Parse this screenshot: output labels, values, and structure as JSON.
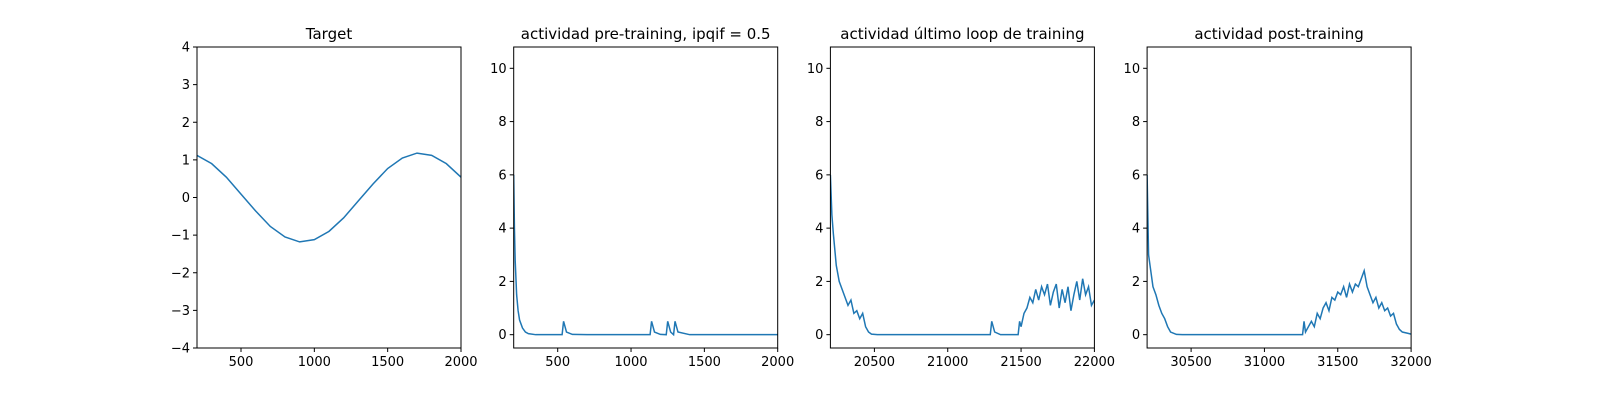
{
  "chart_data": [
    {
      "type": "line",
      "title": "Target",
      "color": "#1f77b4",
      "x": [
        200,
        300,
        400,
        500,
        600,
        700,
        800,
        900,
        1000,
        1100,
        1200,
        1300,
        1400,
        1500,
        1600,
        1700,
        1800,
        1900,
        2000
      ],
      "values": [
        1.12,
        0.9,
        0.54,
        0.09,
        -0.36,
        -0.77,
        -1.05,
        -1.18,
        -1.12,
        -0.9,
        -0.54,
        -0.09,
        0.36,
        0.77,
        1.05,
        1.18,
        1.12,
        0.9,
        0.54
      ],
      "xlim": [
        200,
        2000
      ],
      "xticks": [
        500,
        1000,
        1500,
        2000
      ],
      "ylim": [
        -4,
        4
      ],
      "yticks": [
        {
          "value": -4,
          "label": "−4"
        },
        {
          "value": -3,
          "label": "−3"
        },
        {
          "value": -2,
          "label": "−2"
        },
        {
          "value": -1,
          "label": "−1"
        },
        0,
        1,
        2,
        3,
        4
      ]
    },
    {
      "type": "line",
      "title": "actividad pre-training, ipqif = 0.5",
      "color": "#1f77b4",
      "x": [
        200,
        205,
        210,
        220,
        230,
        240,
        260,
        280,
        300,
        350,
        530,
        540,
        560,
        600,
        700,
        1130,
        1140,
        1160,
        1200,
        1240,
        1250,
        1270,
        1290,
        1300,
        1320,
        1400,
        2000
      ],
      "values": [
        6,
        4.0,
        2.8,
        1.5,
        0.9,
        0.55,
        0.25,
        0.1,
        0.04,
        0,
        0,
        0.5,
        0.1,
        0.01,
        0,
        0,
        0.5,
        0.1,
        0.01,
        0,
        0.5,
        0.1,
        0,
        0.5,
        0.1,
        0,
        0
      ],
      "xlim": [
        200,
        2000
      ],
      "xticks": [
        500,
        1000,
        1500,
        2000
      ],
      "ylim": [
        -0.5,
        10.8
      ],
      "yticks": [
        0,
        2,
        4,
        6,
        8,
        10
      ]
    },
    {
      "type": "line",
      "title": "actividad último loop de training",
      "color": "#1f77b4",
      "x": [
        20200,
        20210,
        20220,
        20240,
        20260,
        20280,
        20300,
        20320,
        20340,
        20360,
        20380,
        20400,
        20420,
        20440,
        20460,
        20480,
        20520,
        21290,
        21300,
        21320,
        21360,
        21480,
        21490,
        21500,
        21520,
        21540,
        21560,
        21580,
        21600,
        21620,
        21640,
        21660,
        21680,
        21700,
        21720,
        21740,
        21760,
        21780,
        21800,
        21820,
        21840,
        21860,
        21880,
        21900,
        21920,
        21940,
        21960,
        21980,
        22000
      ],
      "values": [
        6,
        4.5,
        3.8,
        2.6,
        2.0,
        1.7,
        1.4,
        1.1,
        1.3,
        0.8,
        0.9,
        0.6,
        0.8,
        0.3,
        0.1,
        0.02,
        0,
        0,
        0.5,
        0.1,
        0,
        0,
        0.5,
        0.3,
        0.8,
        1.0,
        1.4,
        1.2,
        1.7,
        1.3,
        1.8,
        1.5,
        1.9,
        1.1,
        1.6,
        1.9,
        1.0,
        1.7,
        1.2,
        1.8,
        0.9,
        1.5,
        2.0,
        1.3,
        2.1,
        1.5,
        1.8,
        1.1,
        1.3
      ],
      "xlim": [
        20200,
        22000
      ],
      "xticks": [
        20500,
        21000,
        21500,
        22000
      ],
      "ylim": [
        -0.5,
        10.8
      ],
      "yticks": [
        0,
        2,
        4,
        6,
        8,
        10
      ]
    },
    {
      "type": "line",
      "title": "actividad post-training",
      "color": "#1f77b4",
      "x": [
        30200,
        30210,
        30220,
        30240,
        30260,
        30280,
        30300,
        30320,
        30340,
        30360,
        30400,
        30440,
        31260,
        31270,
        31280,
        31300,
        31320,
        31340,
        31360,
        31380,
        31400,
        31420,
        31440,
        31460,
        31480,
        31500,
        31520,
        31540,
        31560,
        31580,
        31600,
        31620,
        31640,
        31660,
        31680,
        31700,
        31720,
        31740,
        31760,
        31780,
        31800,
        31820,
        31840,
        31860,
        31880,
        31900,
        31920,
        31940,
        31980,
        32000
      ],
      "values": [
        6,
        3,
        2.6,
        1.8,
        1.5,
        1.1,
        0.8,
        0.6,
        0.3,
        0.1,
        0.01,
        0,
        0,
        0.5,
        0.1,
        0.3,
        0.5,
        0.3,
        0.8,
        0.6,
        1.0,
        1.2,
        0.9,
        1.4,
        1.3,
        1.6,
        1.5,
        1.8,
        1.4,
        1.9,
        1.6,
        1.9,
        1.8,
        2.1,
        2.4,
        1.8,
        1.5,
        1.2,
        1.4,
        1.0,
        1.2,
        0.9,
        1.0,
        0.7,
        0.8,
        0.4,
        0.2,
        0.1,
        0.05,
        0.02
      ],
      "xlim": [
        30200,
        32000
      ],
      "xticks": [
        30500,
        31000,
        31500,
        32000
      ],
      "ylim": [
        -0.5,
        10.8
      ],
      "yticks": [
        0,
        2,
        4,
        6,
        8,
        10
      ]
    }
  ]
}
